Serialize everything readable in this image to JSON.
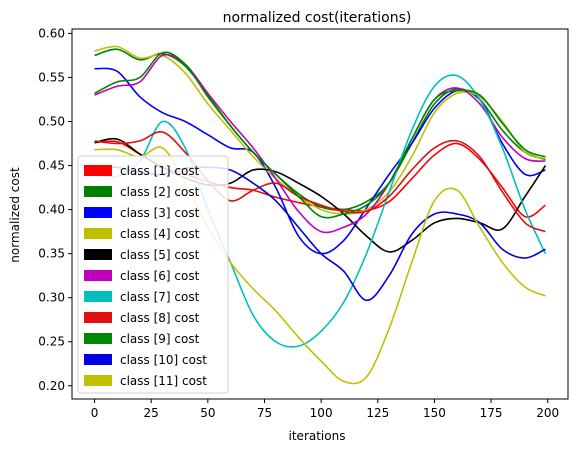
{
  "chart_data": {
    "type": "line",
    "title": "normalized cost(iterations)",
    "xlabel": "iterations",
    "ylabel": "normalized cost",
    "xlim": [
      -9.95,
      208.95
    ],
    "ylim": [
      0.185,
      0.605
    ],
    "xticks": [
      0,
      25,
      50,
      75,
      100,
      125,
      150,
      175,
      200
    ],
    "yticks": [
      0.2,
      0.25,
      0.3,
      0.35,
      0.4,
      0.45,
      0.5,
      0.55,
      0.6
    ],
    "xtick_labels": [
      "0",
      "25",
      "50",
      "75",
      "100",
      "125",
      "150",
      "175",
      "200"
    ],
    "ytick_labels": [
      "0.20",
      "0.25",
      "0.30",
      "0.35",
      "0.40",
      "0.45",
      "0.50",
      "0.55",
      "0.60"
    ],
    "legend_position": "lower-left",
    "grid": false,
    "series": [
      {
        "name": "class [1] cost",
        "color": "#ff0000",
        "x": [
          0,
          10,
          20,
          30,
          40,
          50,
          60,
          70,
          80,
          90,
          100,
          110,
          120,
          130,
          140,
          150,
          160,
          170,
          180,
          190,
          199
        ],
        "y": [
          0.476,
          0.477,
          0.463,
          0.448,
          0.44,
          0.432,
          0.425,
          0.422,
          0.414,
          0.408,
          0.403,
          0.4,
          0.399,
          0.409,
          0.435,
          0.462,
          0.475,
          0.457,
          0.425,
          0.392,
          0.405
        ]
      },
      {
        "name": "class [2] cost",
        "color": "#008000",
        "x": [
          0,
          10,
          20,
          30,
          40,
          50,
          60,
          70,
          80,
          90,
          100,
          110,
          120,
          130,
          140,
          150,
          160,
          170,
          180,
          190,
          199
        ],
        "y": [
          0.575,
          0.582,
          0.57,
          0.577,
          0.563,
          0.53,
          0.495,
          0.465,
          0.44,
          0.418,
          0.403,
          0.4,
          0.409,
          0.43,
          0.475,
          0.52,
          0.537,
          0.525,
          0.49,
          0.465,
          0.457
        ]
      },
      {
        "name": "class [3] cost",
        "color": "#0000ff",
        "x": [
          0,
          10,
          20,
          30,
          40,
          50,
          60,
          70,
          80,
          90,
          100,
          110,
          120,
          130,
          140,
          150,
          160,
          170,
          180,
          190,
          199
        ],
        "y": [
          0.56,
          0.557,
          0.528,
          0.51,
          0.5,
          0.485,
          0.47,
          0.465,
          0.425,
          0.37,
          0.35,
          0.365,
          0.402,
          0.44,
          0.475,
          0.515,
          0.535,
          0.525,
          0.475,
          0.44,
          0.445
        ]
      },
      {
        "name": "class [4] cost",
        "color": "#bfbf00",
        "x": [
          0,
          10,
          20,
          30,
          40,
          50,
          60,
          70,
          80,
          90,
          100,
          110,
          120,
          130,
          140,
          150,
          160,
          170,
          180,
          190,
          199
        ],
        "y": [
          0.58,
          0.585,
          0.572,
          0.575,
          0.555,
          0.52,
          0.49,
          0.46,
          0.435,
          0.415,
          0.4,
          0.395,
          0.4,
          0.42,
          0.46,
          0.51,
          0.532,
          0.528,
          0.5,
          0.465,
          0.458
        ]
      },
      {
        "name": "class [5] cost",
        "color": "#000000",
        "x": [
          0,
          10,
          20,
          30,
          40,
          50,
          60,
          70,
          80,
          90,
          100,
          110,
          120,
          130,
          140,
          150,
          160,
          170,
          180,
          190,
          199
        ],
        "y": [
          0.476,
          0.48,
          0.463,
          0.448,
          0.436,
          0.428,
          0.43,
          0.445,
          0.443,
          0.43,
          0.415,
          0.395,
          0.37,
          0.352,
          0.365,
          0.385,
          0.39,
          0.385,
          0.378,
          0.415,
          0.45
        ]
      },
      {
        "name": "class [6] cost",
        "color": "#bf00bf",
        "x": [
          0,
          10,
          20,
          30,
          40,
          50,
          60,
          70,
          80,
          90,
          100,
          110,
          120,
          130,
          140,
          150,
          160,
          170,
          180,
          190,
          199
        ],
        "y": [
          0.53,
          0.54,
          0.545,
          0.575,
          0.565,
          0.532,
          0.5,
          0.47,
          0.435,
          0.398,
          0.375,
          0.38,
          0.395,
          0.43,
          0.48,
          0.525,
          0.538,
          0.52,
          0.482,
          0.458,
          0.455
        ]
      },
      {
        "name": "class [7] cost",
        "color": "#00bfbf",
        "x": [
          0,
          10,
          20,
          30,
          40,
          50,
          60,
          70,
          80,
          90,
          100,
          110,
          120,
          130,
          140,
          150,
          160,
          170,
          180,
          190,
          199
        ],
        "y": [
          0.44,
          0.438,
          0.455,
          0.5,
          0.47,
          0.4,
          0.34,
          0.28,
          0.25,
          0.245,
          0.262,
          0.295,
          0.35,
          0.42,
          0.49,
          0.54,
          0.552,
          0.525,
          0.47,
          0.4,
          0.35
        ]
      },
      {
        "name": "class [8] cost",
        "color": "#e01010",
        "x": [
          0,
          10,
          20,
          30,
          40,
          50,
          60,
          70,
          80,
          90,
          100,
          110,
          120,
          130,
          140,
          150,
          160,
          170,
          180,
          190,
          199
        ],
        "y": [
          0.478,
          0.475,
          0.478,
          0.488,
          0.465,
          0.433,
          0.41,
          0.422,
          0.43,
          0.415,
          0.405,
          0.398,
          0.398,
          0.415,
          0.445,
          0.47,
          0.478,
          0.46,
          0.42,
          0.385,
          0.375
        ]
      },
      {
        "name": "class [9] cost",
        "color": "#008800",
        "x": [
          0,
          10,
          20,
          30,
          40,
          50,
          60,
          70,
          80,
          90,
          100,
          110,
          120,
          130,
          140,
          150,
          160,
          170,
          180,
          190,
          199
        ],
        "y": [
          0.532,
          0.545,
          0.55,
          0.578,
          0.565,
          0.528,
          0.495,
          0.465,
          0.44,
          0.415,
          0.392,
          0.395,
          0.405,
          0.43,
          0.48,
          0.525,
          0.535,
          0.53,
          0.498,
          0.468,
          0.46
        ]
      },
      {
        "name": "class [10] cost",
        "color": "#0000e0",
        "x": [
          0,
          10,
          20,
          30,
          40,
          50,
          60,
          70,
          80,
          90,
          100,
          110,
          120,
          130,
          140,
          150,
          160,
          170,
          180,
          190,
          199
        ],
        "y": [
          0.45,
          0.448,
          0.442,
          0.44,
          0.447,
          0.448,
          0.445,
          0.43,
          0.41,
          0.38,
          0.35,
          0.33,
          0.297,
          0.325,
          0.372,
          0.395,
          0.395,
          0.385,
          0.355,
          0.345,
          0.355
        ]
      },
      {
        "name": "class [11] cost",
        "color": "#c0c000",
        "x": [
          0,
          10,
          20,
          30,
          40,
          50,
          60,
          70,
          80,
          90,
          100,
          110,
          120,
          130,
          140,
          150,
          160,
          170,
          180,
          190,
          199
        ],
        "y": [
          0.468,
          0.468,
          0.46,
          0.47,
          0.43,
          0.38,
          0.34,
          0.31,
          0.285,
          0.255,
          0.228,
          0.205,
          0.21,
          0.265,
          0.34,
          0.41,
          0.422,
          0.38,
          0.34,
          0.312,
          0.302
        ]
      }
    ]
  }
}
